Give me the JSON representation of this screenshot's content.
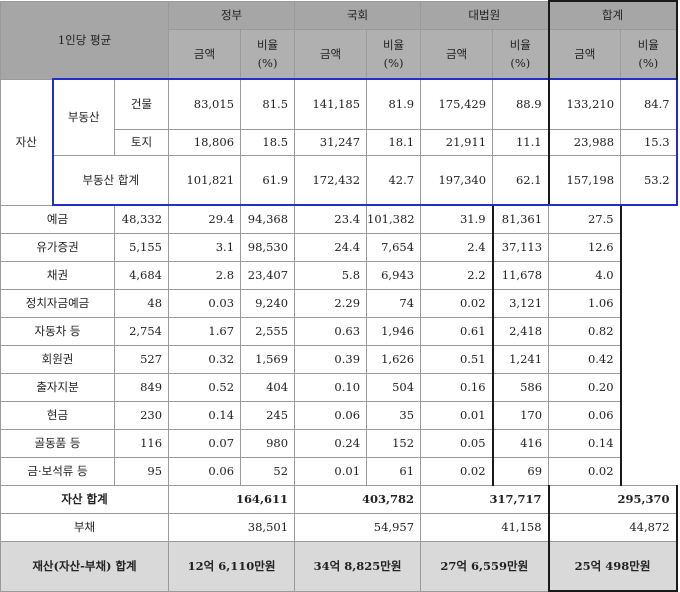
{
  "header": {
    "corner": "1인당 평균",
    "groups": [
      "정부",
      "국회",
      "대법원",
      "합계"
    ],
    "amount_label": "금액",
    "ratio_label_line1": "비율",
    "ratio_label_line2": "(%)"
  },
  "section_label": "자산",
  "real_estate": {
    "group_label": "부동산",
    "rows": [
      {
        "label": "건물",
        "values": [
          "83,015",
          "81.5",
          "141,185",
          "81.9",
          "175,429",
          "88.9",
          "133,210",
          "84.7"
        ]
      },
      {
        "label": "토지",
        "values": [
          "18,806",
          "18.5",
          "31,247",
          "18.1",
          "21,911",
          "11.1",
          "23,988",
          "15.3"
        ]
      }
    ],
    "total": {
      "label": "부동산 합계",
      "values": [
        "101,821",
        "61.9",
        "172,432",
        "42.7",
        "197,340",
        "62.1",
        "157,198",
        "53.2"
      ]
    }
  },
  "assets": [
    {
      "label": "예금",
      "values": [
        "48,332",
        "29.4",
        "94,368",
        "23.4",
        "101,382",
        "31.9",
        "81,361",
        "27.5"
      ]
    },
    {
      "label": "유가증권",
      "values": [
        "5,155",
        "3.1",
        "98,530",
        "24.4",
        "7,654",
        "2.4",
        "37,113",
        "12.6"
      ]
    },
    {
      "label": "채권",
      "values": [
        "4,684",
        "2.8",
        "23,407",
        "5.8",
        "6,943",
        "2.2",
        "11,678",
        "4.0"
      ]
    },
    {
      "label": "정치자금예금",
      "values": [
        "48",
        "0.03",
        "9,240",
        "2.29",
        "74",
        "0.02",
        "3,121",
        "1.06"
      ]
    },
    {
      "label": "자동차 등",
      "values": [
        "2,754",
        "1.67",
        "2,555",
        "0.63",
        "1,946",
        "0.61",
        "2,418",
        "0.82"
      ]
    },
    {
      "label": "회원권",
      "values": [
        "527",
        "0.32",
        "1,569",
        "0.39",
        "1,626",
        "0.51",
        "1,241",
        "0.42"
      ]
    },
    {
      "label": "출자지분",
      "values": [
        "849",
        "0.52",
        "404",
        "0.10",
        "504",
        "0.16",
        "586",
        "0.20"
      ]
    },
    {
      "label": "현금",
      "values": [
        "230",
        "0.14",
        "245",
        "0.06",
        "35",
        "0.01",
        "170",
        "0.06"
      ]
    },
    {
      "label": "골동품 등",
      "values": [
        "116",
        "0.07",
        "980",
        "0.24",
        "152",
        "0.05",
        "416",
        "0.14"
      ]
    },
    {
      "label": "금·보석류 등",
      "values": [
        "95",
        "0.06",
        "52",
        "0.01",
        "61",
        "0.02",
        "69",
        "0.02"
      ]
    }
  ],
  "asset_total": {
    "label": "자산 합계",
    "values": [
      "164,611",
      "403,782",
      "317,717",
      "295,370"
    ]
  },
  "liabilities": {
    "label": "부채",
    "values": [
      "38,501",
      "54,957",
      "41,158",
      "44,872"
    ]
  },
  "net_worth": {
    "label": "재산(자산-부채) 합계",
    "values": [
      "12억 6,110만원",
      "34억 8,825만원",
      "27억 6,559만원",
      "25억 498만원"
    ]
  }
}
